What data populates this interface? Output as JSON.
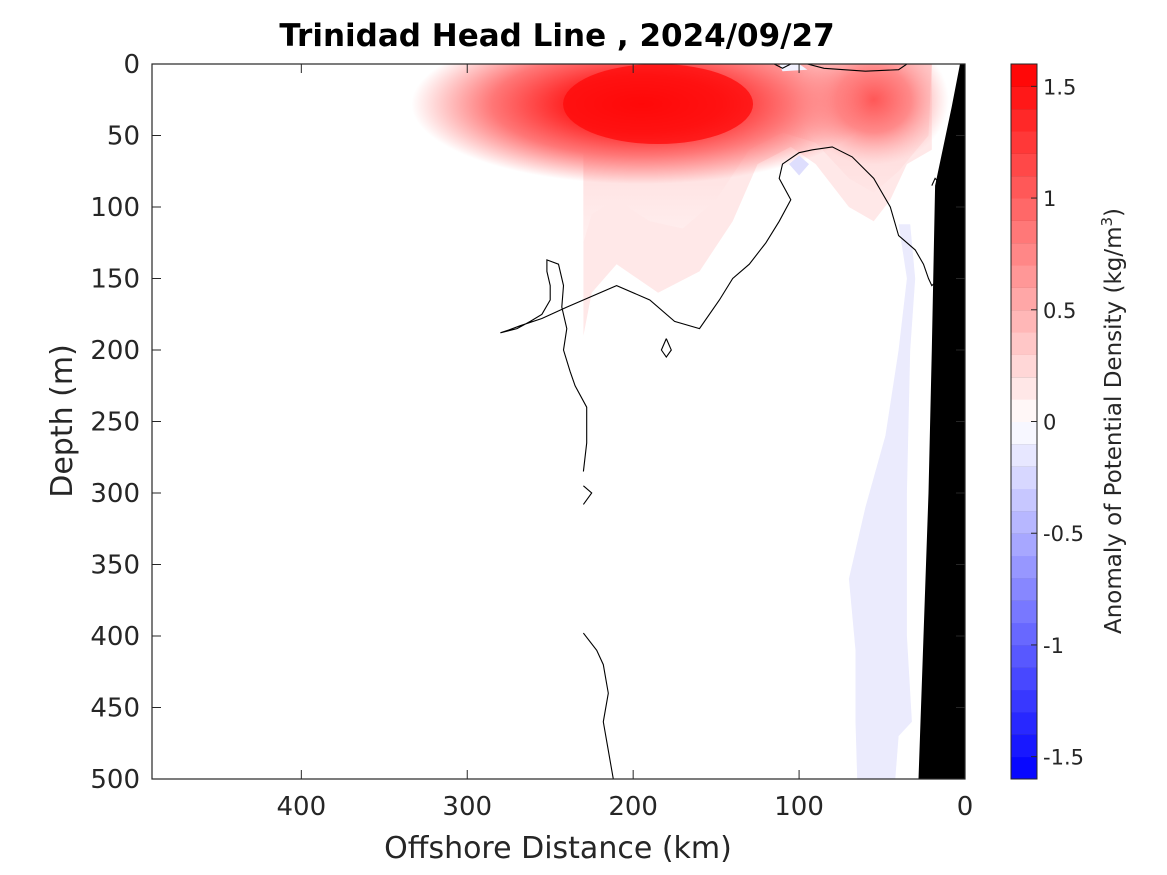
{
  "chart_data": {
    "type": "heatmap",
    "title": "Trinidad Head Line , 2024/09/27",
    "xlabel": "Offshore Distance (km)",
    "ylabel": "Depth (m)",
    "xlim": [
      490,
      0
    ],
    "ylim": [
      0,
      500
    ],
    "x_reversed": true,
    "y_reversed": true,
    "xticks": [
      400,
      300,
      200,
      100,
      0
    ],
    "yticks": [
      0,
      50,
      100,
      150,
      200,
      250,
      300,
      350,
      400,
      450,
      500
    ],
    "colorbar": {
      "label": "Anomaly of Potential Density (kg/m",
      "label_superscript": "3",
      "label_suffix": ")",
      "range": [
        -1.6,
        1.6
      ],
      "ticks": [
        1.5,
        1,
        0.5,
        0,
        -0.5,
        -1,
        -1.5
      ],
      "tick_labels": [
        "1.5",
        "1",
        "0.5",
        "0",
        "-0.5",
        "-1",
        "-1.5"
      ],
      "levels_step": 0.1,
      "colormap": "blue-white-red",
      "color_min": "#0000ff",
      "color_mid": "#ffffff",
      "color_max": "#ff0000"
    },
    "data_extent_km": [
      230,
      20
    ],
    "zero_contour": {
      "color": "#000000",
      "segments": [
        [
          [
            230,
            285
          ],
          [
            228,
            265
          ],
          [
            228,
            240
          ],
          [
            235,
            225
          ],
          [
            238,
            215
          ],
          [
            242,
            200
          ],
          [
            240,
            185
          ],
          [
            243,
            170
          ],
          [
            242,
            155
          ],
          [
            245,
            140
          ],
          [
            252,
            137
          ],
          [
            252,
            145
          ],
          [
            250,
            155
          ],
          [
            250,
            165
          ],
          [
            255,
            175
          ],
          [
            262,
            180
          ],
          [
            270,
            185
          ],
          [
            280,
            188
          ],
          [
            275,
            186
          ],
          [
            268,
            183
          ],
          [
            255,
            178
          ],
          [
            240,
            170
          ],
          [
            210,
            155
          ],
          [
            190,
            165
          ],
          [
            175,
            180
          ],
          [
            160,
            185
          ],
          [
            148,
            165
          ],
          [
            140,
            150
          ],
          [
            130,
            140
          ],
          [
            120,
            125
          ],
          [
            112,
            110
          ],
          [
            105,
            95
          ],
          [
            112,
            80
          ],
          [
            110,
            70
          ],
          [
            100,
            62
          ],
          [
            92,
            60
          ],
          [
            80,
            58
          ],
          [
            68,
            65
          ],
          [
            55,
            80
          ],
          [
            45,
            100
          ],
          [
            40,
            120
          ],
          [
            30,
            130
          ],
          [
            25,
            140
          ],
          [
            22,
            150
          ],
          [
            20,
            155
          ],
          [
            15,
            150
          ],
          [
            10,
            120
          ],
          [
            8,
            100
          ],
          [
            10,
            90
          ],
          [
            18,
            80
          ],
          [
            20,
            85
          ]
        ],
        [
          [
            230,
            295
          ],
          [
            225,
            300
          ],
          [
            230,
            308
          ]
        ],
        [
          [
            180,
            192
          ],
          [
            177,
            200
          ],
          [
            180,
            205
          ],
          [
            183,
            200
          ],
          [
            180,
            192
          ]
        ],
        [
          [
            230,
            398
          ],
          [
            222,
            410
          ],
          [
            218,
            420
          ],
          [
            215,
            440
          ],
          [
            218,
            460
          ],
          [
            215,
            480
          ],
          [
            212,
            500
          ]
        ],
        [
          [
            115,
            0
          ],
          [
            110,
            3
          ],
          [
            105,
            0
          ]
        ],
        [
          [
            35,
            0
          ],
          [
            40,
            4
          ],
          [
            60,
            5
          ],
          [
            85,
            3
          ],
          [
            95,
            0
          ]
        ]
      ]
    },
    "anomaly_regions": [
      {
        "name": "surface-positive-core",
        "peak_value": 1.55,
        "center_km": 195,
        "center_depth_m": 28
      },
      {
        "name": "secondary-positive-core",
        "peak_value": 1.0,
        "center_km": 55,
        "center_depth_m": 25
      },
      {
        "name": "nearshore-negative-band",
        "peak_value": -0.1,
        "depth_range_m": [
          110,
          500
        ],
        "km_range": [
          70,
          40
        ]
      },
      {
        "name": "small-negative-patch",
        "peak_value": -0.1,
        "center_km": 100,
        "center_depth_m": 70
      }
    ],
    "bottom_topography": {
      "color": "#000000",
      "profile": [
        [
          0,
          0
        ],
        [
          3,
          0
        ],
        [
          8,
          30
        ],
        [
          18,
          85
        ],
        [
          20,
          200
        ],
        [
          22,
          300
        ],
        [
          25,
          400
        ],
        [
          28,
          500
        ]
      ]
    }
  }
}
